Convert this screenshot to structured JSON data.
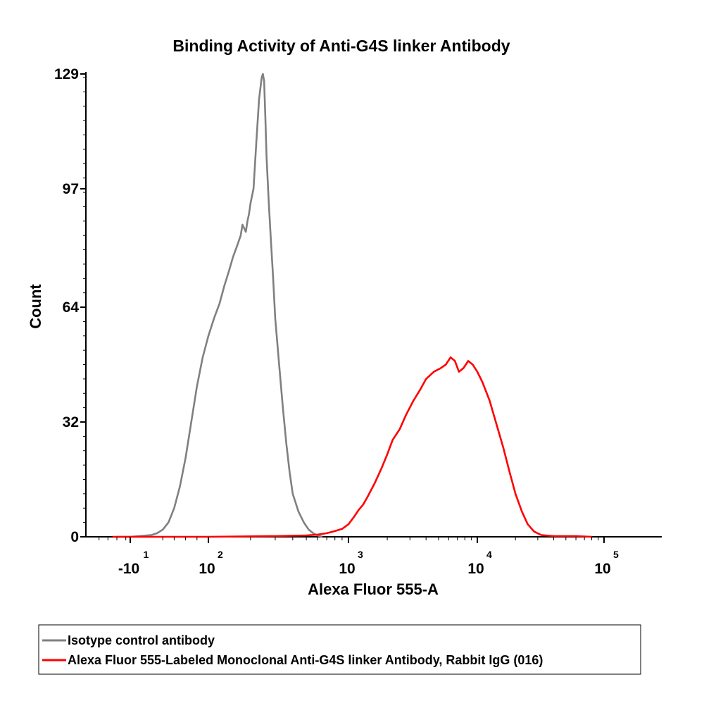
{
  "chart_data": {
    "type": "line",
    "title": "Binding Activity of Anti-G4S linker Antibody",
    "xlabel": "Alexa Fluor 555-A",
    "ylabel": "Count",
    "x_scale": "biexponential",
    "ylim": [
      0,
      129
    ],
    "yticks": [
      {
        "value": 0,
        "label": "0"
      },
      {
        "value": 32,
        "label": "32"
      },
      {
        "value": 64,
        "label": "64"
      },
      {
        "value": 97,
        "label": "97"
      },
      {
        "value": 129,
        "label": "129"
      }
    ],
    "xticks": [
      {
        "value": -10,
        "base": "-10",
        "exp": "1"
      },
      {
        "value": 100,
        "base": "10",
        "exp": "2"
      },
      {
        "value": 1000,
        "base": "10",
        "exp": "3"
      },
      {
        "value": 10000,
        "base": "10",
        "exp": "4"
      },
      {
        "value": 100000,
        "base": "10",
        "exp": "5"
      }
    ],
    "legend_position": "bottom",
    "series": [
      {
        "name": "Isotype control antibody",
        "color": "#808080",
        "points": [
          [
            -40,
            0
          ],
          [
            -10,
            0
          ],
          [
            0,
            0.5
          ],
          [
            10,
            1
          ],
          [
            20,
            2
          ],
          [
            30,
            4
          ],
          [
            40,
            8
          ],
          [
            50,
            14
          ],
          [
            60,
            22
          ],
          [
            70,
            32
          ],
          [
            80,
            42
          ],
          [
            90,
            50
          ],
          [
            100,
            56
          ],
          [
            110,
            61
          ],
          [
            120,
            65
          ],
          [
            130,
            70
          ],
          [
            140,
            74
          ],
          [
            150,
            78
          ],
          [
            160,
            81
          ],
          [
            170,
            84
          ],
          [
            175,
            87
          ],
          [
            180,
            86
          ],
          [
            185,
            85
          ],
          [
            190,
            88
          ],
          [
            195,
            90
          ],
          [
            200,
            93
          ],
          [
            210,
            97
          ],
          [
            220,
            110
          ],
          [
            230,
            122
          ],
          [
            240,
            128
          ],
          [
            245,
            129
          ],
          [
            250,
            127
          ],
          [
            255,
            117
          ],
          [
            260,
            106
          ],
          [
            270,
            93
          ],
          [
            280,
            82
          ],
          [
            290,
            72
          ],
          [
            300,
            61
          ],
          [
            320,
            48
          ],
          [
            340,
            36
          ],
          [
            360,
            26
          ],
          [
            380,
            18
          ],
          [
            400,
            12
          ],
          [
            440,
            7
          ],
          [
            480,
            4
          ],
          [
            520,
            2
          ],
          [
            560,
            1
          ],
          [
            600,
            0.4
          ],
          [
            650,
            0
          ]
        ]
      },
      {
        "name": "Alexa Fluor 555-Labeled Monoclonal Anti-G4S linker Antibody, Rabbit IgG (016)",
        "color": "#ff0000",
        "points": [
          [
            -50,
            0
          ],
          [
            100,
            0
          ],
          [
            300,
            0.2
          ],
          [
            500,
            0.4
          ],
          [
            600,
            0.6
          ],
          [
            700,
            1
          ],
          [
            800,
            1.6
          ],
          [
            900,
            2.2
          ],
          [
            1000,
            3.5
          ],
          [
            1100,
            5.5
          ],
          [
            1200,
            7.5
          ],
          [
            1300,
            9
          ],
          [
            1400,
            11
          ],
          [
            1600,
            15
          ],
          [
            1800,
            19
          ],
          [
            2000,
            23
          ],
          [
            2200,
            27
          ],
          [
            2500,
            30
          ],
          [
            2800,
            34
          ],
          [
            3200,
            38
          ],
          [
            3600,
            41
          ],
          [
            4000,
            44
          ],
          [
            4600,
            46
          ],
          [
            5200,
            47
          ],
          [
            5700,
            48
          ],
          [
            6200,
            50
          ],
          [
            6700,
            49
          ],
          [
            7200,
            46
          ],
          [
            7800,
            47
          ],
          [
            8500,
            49
          ],
          [
            9200,
            48
          ],
          [
            10000,
            46
          ],
          [
            11000,
            43
          ],
          [
            12500,
            38
          ],
          [
            14000,
            32
          ],
          [
            16000,
            25
          ],
          [
            18000,
            18
          ],
          [
            20000,
            12
          ],
          [
            22500,
            7
          ],
          [
            25000,
            3.5
          ],
          [
            28000,
            1.5
          ],
          [
            32000,
            0.5
          ],
          [
            40000,
            0.2
          ],
          [
            60000,
            0.2
          ],
          [
            80000,
            0
          ]
        ]
      }
    ]
  }
}
